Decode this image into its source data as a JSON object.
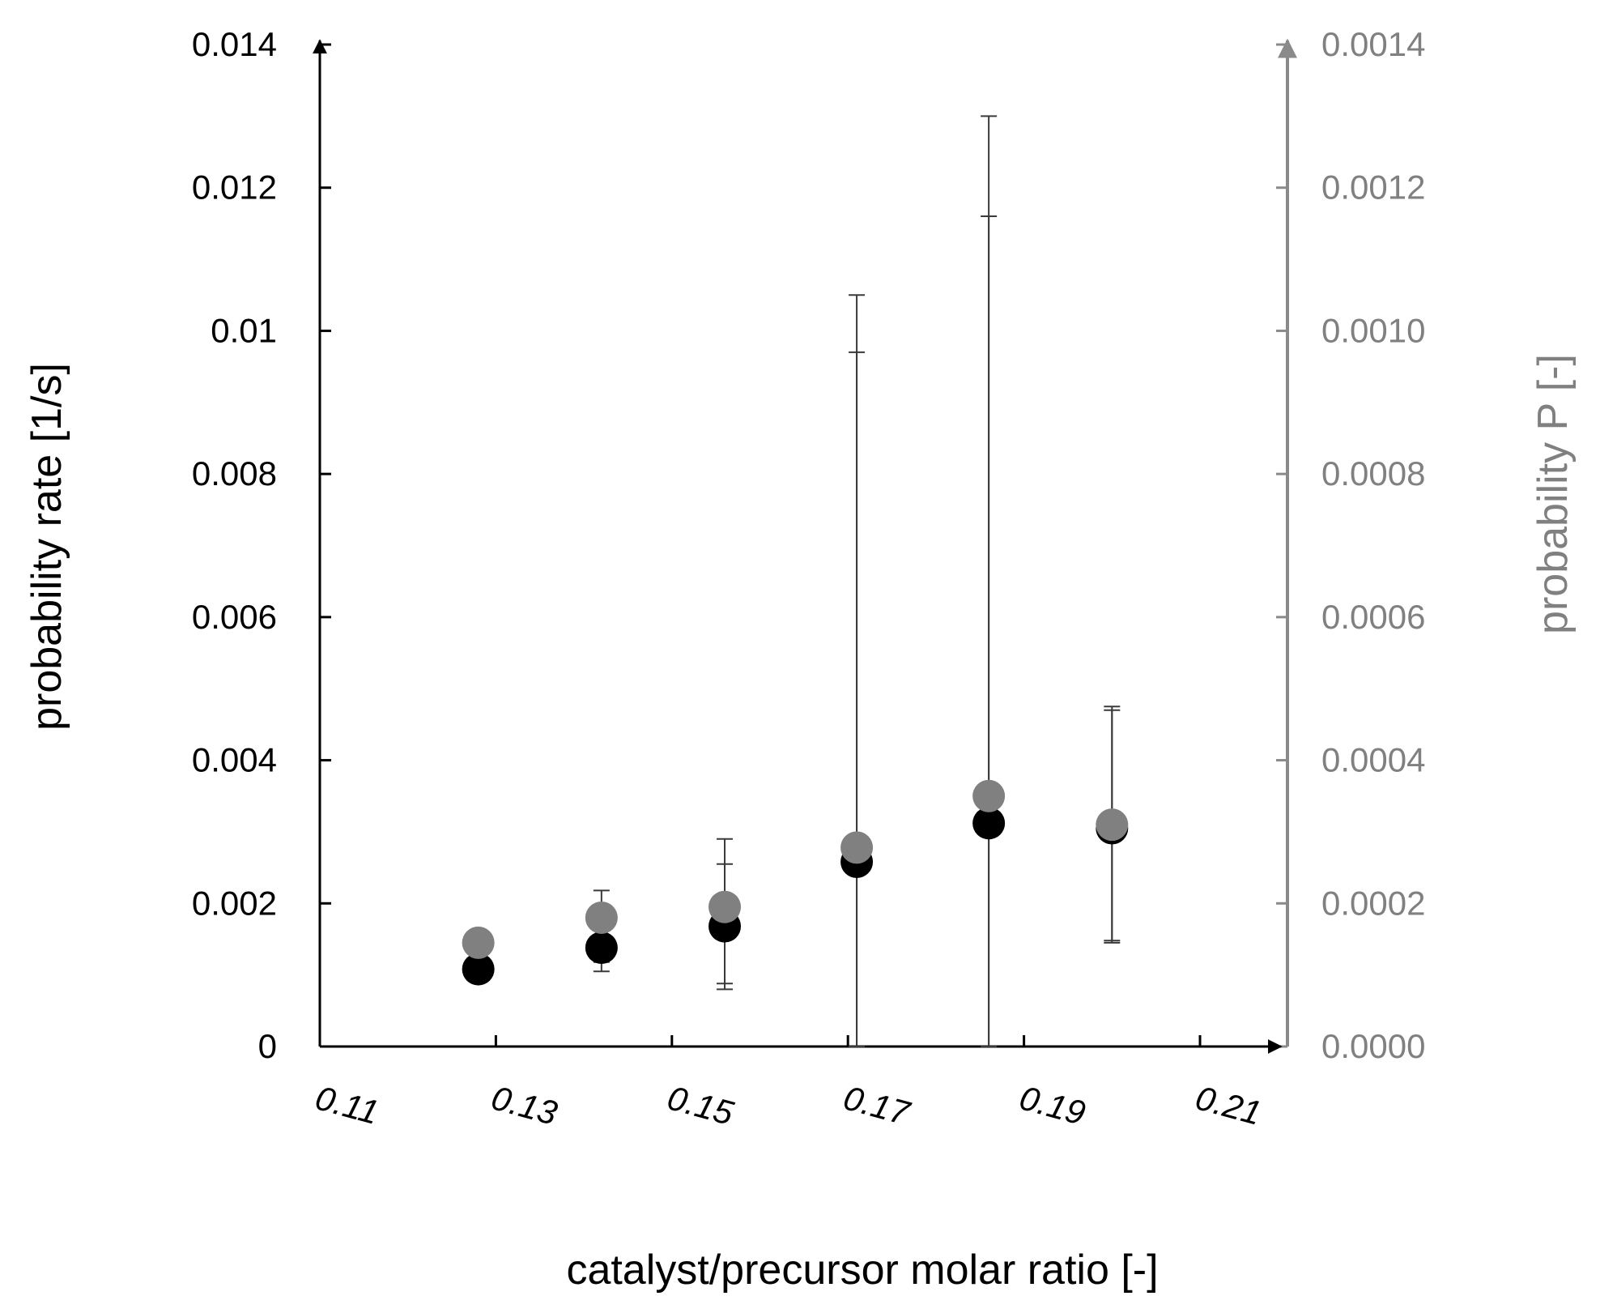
{
  "chart_data": {
    "type": "scatter",
    "title": "",
    "xlabel": "catalyst/precursor molar ratio [-]",
    "ylabel_left": "probability rate [1/s]",
    "ylabel_right": "probability P [-]",
    "xlim": [
      0.11,
      0.21
    ],
    "ylim_left": [
      0,
      0.014
    ],
    "ylim_right": [
      0,
      0.0014
    ],
    "x_ticks": [
      "0.11",
      "0.13",
      "0.15",
      "0.17",
      "0.19",
      "0.21"
    ],
    "y_ticks_left": [
      "0",
      "0.002",
      "0.004",
      "0.006",
      "0.008",
      "0.01",
      "0.012",
      "0.014"
    ],
    "y_ticks_right": [
      "0.0000",
      "0.0002",
      "0.0004",
      "0.0006",
      "0.0008",
      "0.0010",
      "0.0012",
      "0.0014"
    ],
    "grid": false,
    "legend": "none",
    "series": [
      {
        "axis": "left",
        "color": "#000000",
        "x": [
          0.128,
          0.142,
          0.156,
          0.171,
          0.186,
          0.2
        ],
        "y": [
          0.00108,
          0.00138,
          0.00168,
          0.00258,
          0.00312,
          0.00305
        ],
        "err_low": [
          null,
          0.00105,
          0.00088,
          0.0,
          0.0,
          0.00148
        ],
        "err_high": [
          null,
          0.00195,
          0.00255,
          0.0097,
          0.0116,
          0.0047
        ]
      },
      {
        "axis": "right",
        "color": "#808080",
        "x": [
          0.128,
          0.142,
          0.156,
          0.171,
          0.186,
          0.2
        ],
        "y": [
          0.000145,
          0.00018,
          0.000195,
          0.000278,
          0.00035,
          0.00031
        ],
        "err_low": [
          null,
          0.000118,
          8e-05,
          0.0,
          0.0,
          0.000145
        ],
        "err_high": [
          null,
          0.000218,
          0.00029,
          0.00105,
          0.0013,
          0.000475
        ]
      }
    ]
  }
}
